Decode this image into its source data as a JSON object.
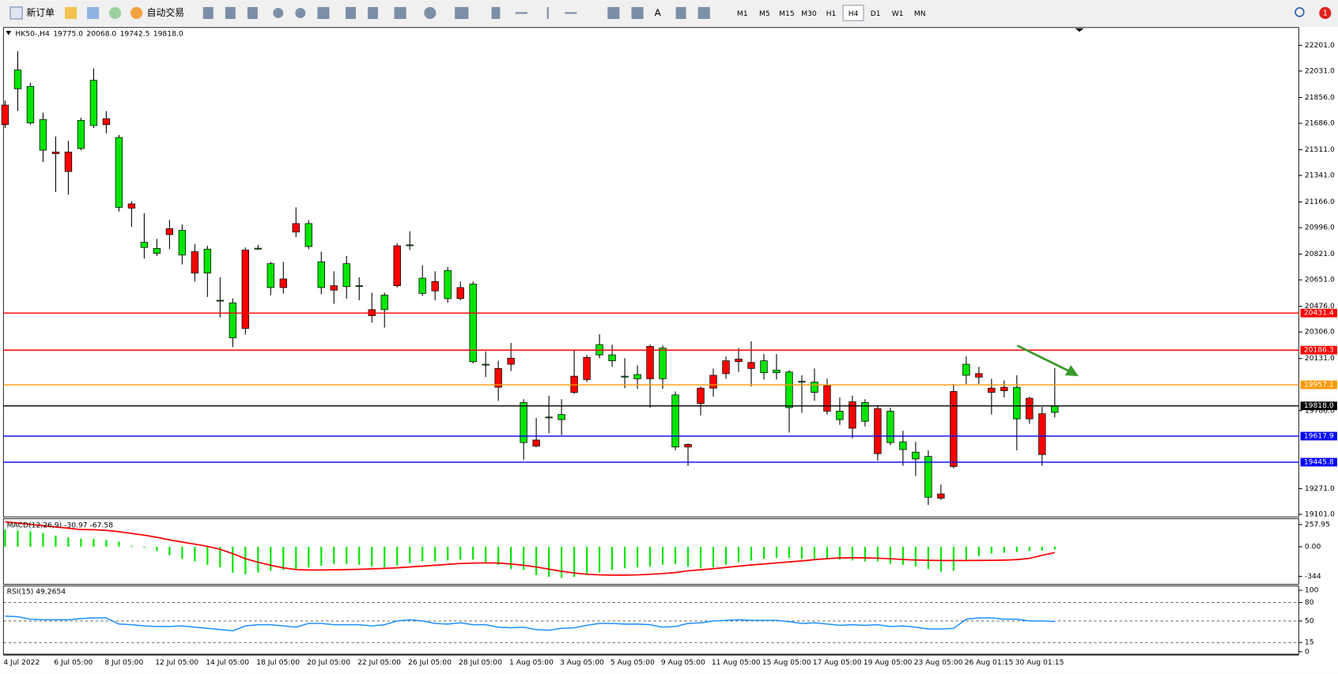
{
  "toolbar": {
    "buttons": [
      "新订单",
      "自动交易"
    ],
    "timeframes": [
      "M1",
      "M5",
      "M15",
      "M30",
      "H1",
      "H4",
      "D1",
      "W1",
      "MN"
    ],
    "active_timeframe": "H4",
    "notifications": 1
  },
  "chart_data": [
    {
      "type": "candlestick",
      "title": "HK50-,H4",
      "header_values": [
        "19775.0",
        "20068.0",
        "19742.5",
        "19818.0"
      ],
      "up_color": "#00e600",
      "down_color": "#ff0000",
      "categories": [
        "4 Jul 2022",
        null,
        null,
        null,
        "6 Jul 05:00",
        null,
        null,
        null,
        "8 Jul 05:00",
        null,
        null,
        null,
        "12 Jul 05:00",
        null,
        null,
        null,
        "14 Jul 05:00",
        null,
        null,
        null,
        "18 Jul 05:00",
        null,
        null,
        null,
        "20 Jul 05:00",
        null,
        null,
        null,
        "22 Jul 05:00",
        null,
        null,
        null,
        "26 Jul 05:00",
        null,
        null,
        null,
        "28 Jul 05:00",
        null,
        null,
        null,
        "1 Aug 05:00",
        null,
        null,
        null,
        "3 Aug 05:00",
        null,
        null,
        null,
        "5 Aug 05:00",
        null,
        null,
        null,
        "9 Aug 05:00",
        null,
        null,
        null,
        "11 Aug 05:00",
        null,
        null,
        null,
        "15 Aug 05:00",
        null,
        null,
        null,
        "17 Aug 05:00",
        null,
        null,
        null,
        "19 Aug 05:00",
        null,
        null,
        null,
        "23 Aug 05:00",
        null,
        null,
        null,
        "26 Aug 01:15",
        null,
        null,
        null,
        "30 Aug 01:15",
        null,
        null,
        null
      ],
      "open": [
        21806,
        21914,
        21688,
        21508,
        21496,
        21496,
        21519,
        21671,
        21716,
        21130,
        21153,
        20865,
        20826,
        20989,
        20815,
        20837,
        20696,
        20516,
        20268,
        20848,
        20860,
        20600,
        20657,
        21023,
        20871,
        20600,
        20612,
        20606,
        20612,
        20454,
        20454,
        20876,
        20882,
        20561,
        20640,
        20527,
        20600,
        20110,
        20093,
        20065,
        20133,
        19575,
        19592,
        19744,
        19727,
        20014,
        20138,
        20155,
        20116,
        20014,
        19997,
        20211,
        19997,
        19546,
        19563,
        19935,
        20020,
        20116,
        20127,
        20105,
        20037,
        20037,
        19806,
        19980,
        19907,
        19952,
        19727,
        19845,
        19716,
        19800,
        19575,
        19529,
        19467,
        19214,
        19236,
        19913,
        20020,
        20031,
        19935,
        19941,
        19732,
        19868,
        19766,
        19775
      ],
      "high": [
        21835,
        22162,
        21953,
        21756,
        21598,
        21570,
        21722,
        22049,
        21767,
        21609,
        21170,
        21091,
        20922,
        21046,
        21017,
        20888,
        20876,
        20668,
        20527,
        20865,
        20882,
        20770,
        20770,
        21130,
        21046,
        20837,
        20708,
        20809,
        20668,
        20566,
        20566,
        20893,
        20972,
        20747,
        20708,
        20736,
        20640,
        20640,
        20178,
        20116,
        20234,
        19862,
        19738,
        19885,
        19862,
        20189,
        20155,
        20291,
        20223,
        20133,
        20087,
        20223,
        20217,
        19913,
        19569,
        19946,
        20065,
        20144,
        20200,
        20245,
        20161,
        20161,
        20054,
        20020,
        20065,
        19997,
        19873,
        19885,
        19862,
        19823,
        19806,
        19653,
        19580,
        19524,
        19298,
        19963,
        20144,
        20076,
        19997,
        19986,
        20020,
        19879,
        19811,
        20068
      ],
      "low": [
        21654,
        21767,
        21677,
        21429,
        21232,
        21215,
        21508,
        21654,
        21620,
        21102,
        21001,
        20792,
        20809,
        20854,
        20753,
        20640,
        20538,
        20403,
        20206,
        20290,
        20848,
        20550,
        20561,
        20933,
        20854,
        20555,
        20493,
        20527,
        20516,
        20369,
        20335,
        20600,
        20848,
        20544,
        20516,
        20499,
        20516,
        20099,
        20008,
        19851,
        20048,
        19462,
        19546,
        19637,
        19625,
        19896,
        19975,
        20133,
        20076,
        19935,
        19930,
        19806,
        19930,
        19524,
        19422,
        19755,
        19879,
        19997,
        20042,
        19947,
        19992,
        19992,
        19642,
        19772,
        19851,
        19761,
        19693,
        19603,
        19682,
        19456,
        19558,
        19422,
        19355,
        19163,
        19197,
        19405,
        19963,
        19963,
        19761,
        19873,
        19524,
        19699,
        19422,
        19742.5
      ],
      "close": [
        21677,
        22038,
        21930,
        21711,
        21485,
        21367,
        21705,
        21970,
        21677,
        21592,
        21125,
        20899,
        20859,
        20950,
        20978,
        20696,
        20854,
        20516,
        20499,
        20330,
        20860,
        20758,
        20600,
        20967,
        21023,
        20770,
        20583,
        20758,
        20612,
        20414,
        20550,
        20612,
        20882,
        20662,
        20578,
        20713,
        20527,
        20623,
        20093,
        19941,
        20093,
        19840,
        19552,
        19744,
        19761,
        19907,
        19992,
        20223,
        20155,
        20014,
        20025,
        19997,
        20200,
        19890,
        19546,
        19834,
        19935,
        20031,
        20110,
        20065,
        20116,
        20054,
        20042,
        19980,
        19975,
        19783,
        19783,
        19670,
        19840,
        19502,
        19783,
        19580,
        19512,
        19484,
        19208,
        19417,
        20093,
        20008,
        19907,
        19918,
        19941,
        19732,
        19496,
        19818
      ],
      "ylim": [
        19084,
        22319
      ],
      "yticks": [
        {
          "value": 22201,
          "label": "22201.0"
        },
        {
          "value": 22031,
          "label": "22031.0"
        },
        {
          "value": 21856,
          "label": "21856.0"
        },
        {
          "value": 21686,
          "label": "21686.0"
        },
        {
          "value": 21511,
          "label": "21511.0"
        },
        {
          "value": 21341,
          "label": "21341.0"
        },
        {
          "value": 21166,
          "label": "21166.0"
        },
        {
          "value": 20996,
          "label": "20996.0"
        },
        {
          "value": 20821,
          "label": "20821.0"
        },
        {
          "value": 20651,
          "label": "20651.0"
        },
        {
          "value": 20476,
          "label": "20476.0"
        },
        {
          "value": 20306,
          "label": "20306.0"
        },
        {
          "value": 20131,
          "label": "20131.0"
        },
        {
          "value": 19786,
          "label": "19786.0"
        },
        {
          "value": 19271,
          "label": "19271.0"
        },
        {
          "value": 19101,
          "label": "19101.0"
        }
      ],
      "levels": [
        {
          "value": 20431.4,
          "color": "#ff0000"
        },
        {
          "value": 20186.3,
          "color": "#ff0000"
        },
        {
          "value": 19957.1,
          "color": "#ff9900"
        },
        {
          "value": 19818,
          "label": "19818.0",
          "color": "#000000"
        },
        {
          "value": 19617.9,
          "color": "#0000ff"
        },
        {
          "value": 19445.8,
          "color": "#0000ff"
        }
      ]
    },
    {
      "type": "macd",
      "title": "MACD(12,26,9) -30.97 -67.58",
      "histogram": {
        "color": "#00e600",
        "values": [
          200,
          190,
          180,
          160,
          130,
          110,
          95,
          90,
          80,
          60,
          10,
          -10,
          -50,
          -100,
          -140,
          -170,
          -210,
          -240,
          -300,
          -320,
          -300,
          -280,
          -270,
          -260,
          -240,
          -220,
          -200,
          -200,
          -210,
          -230,
          -240,
          -220,
          -190,
          -170,
          -170,
          -160,
          -150,
          -150,
          -180,
          -210,
          -260,
          -270,
          -330,
          -350,
          -360,
          -350,
          -320,
          -300,
          -270,
          -250,
          -240,
          -230,
          -210,
          -200,
          -230,
          -250,
          -240,
          -210,
          -180,
          -160,
          -140,
          -130,
          -130,
          -140,
          -140,
          -140,
          -150,
          -160,
          -170,
          -170,
          -200,
          -210,
          -230,
          -260,
          -290,
          -280,
          -150,
          -110,
          -80,
          -70,
          -60,
          -50,
          -45,
          -30.97
        ]
      },
      "signal": {
        "color": "#ff0000",
        "values": [
          290,
          275,
          260,
          245,
          230,
          215,
          200,
          198,
          190,
          175,
          155,
          135,
          110,
          80,
          55,
          30,
          5,
          -30,
          -80,
          -139,
          -180,
          -215,
          -245,
          -265,
          -270,
          -270,
          -268,
          -266,
          -262,
          -258,
          -252,
          -245,
          -235,
          -225,
          -215,
          -205,
          -195,
          -190,
          -188,
          -190,
          -200,
          -215,
          -235,
          -260,
          -285,
          -305,
          -320,
          -327,
          -330,
          -330,
          -327,
          -320,
          -312,
          -300,
          -280,
          -268,
          -255,
          -240,
          -225,
          -212,
          -200,
          -188,
          -176,
          -165,
          -150,
          -138,
          -130,
          -128,
          -129,
          -133,
          -140,
          -148,
          -154,
          -158,
          -160,
          -160,
          -160,
          -159,
          -158,
          -155,
          -150,
          -135,
          -100,
          -67.58
        ]
      },
      "ylim": [
        -436,
        327
      ],
      "yticks": [
        257.95,
        {
          "value": 0,
          "label": "0.00"
        },
        -344
      ]
    },
    {
      "type": "line",
      "title": "RSI(15) 49.2654",
      "color": "#1e90ff",
      "values": [
        58,
        57,
        53,
        52,
        52,
        52,
        54,
        55,
        55,
        45,
        44,
        42,
        41,
        41,
        42,
        40,
        38,
        36,
        34,
        42,
        44,
        44,
        42,
        40,
        46,
        46,
        44,
        44,
        44,
        42,
        44,
        50,
        52,
        50,
        46,
        45,
        47,
        44,
        44,
        40,
        39,
        40,
        36,
        35,
        38,
        39,
        43,
        46,
        46,
        45,
        45,
        44,
        40,
        41,
        46,
        47,
        50,
        51,
        52,
        51,
        51,
        51,
        49,
        46,
        47,
        45,
        43,
        44,
        43,
        44,
        41,
        42,
        40,
        37,
        37,
        38,
        53,
        55,
        55,
        53,
        53,
        50,
        50,
        49.2654
      ],
      "ylim": [
        -4,
        107
      ],
      "yticks": [
        100,
        80,
        50,
        15,
        0
      ],
      "levels": [
        80,
        50,
        15
      ]
    }
  ]
}
